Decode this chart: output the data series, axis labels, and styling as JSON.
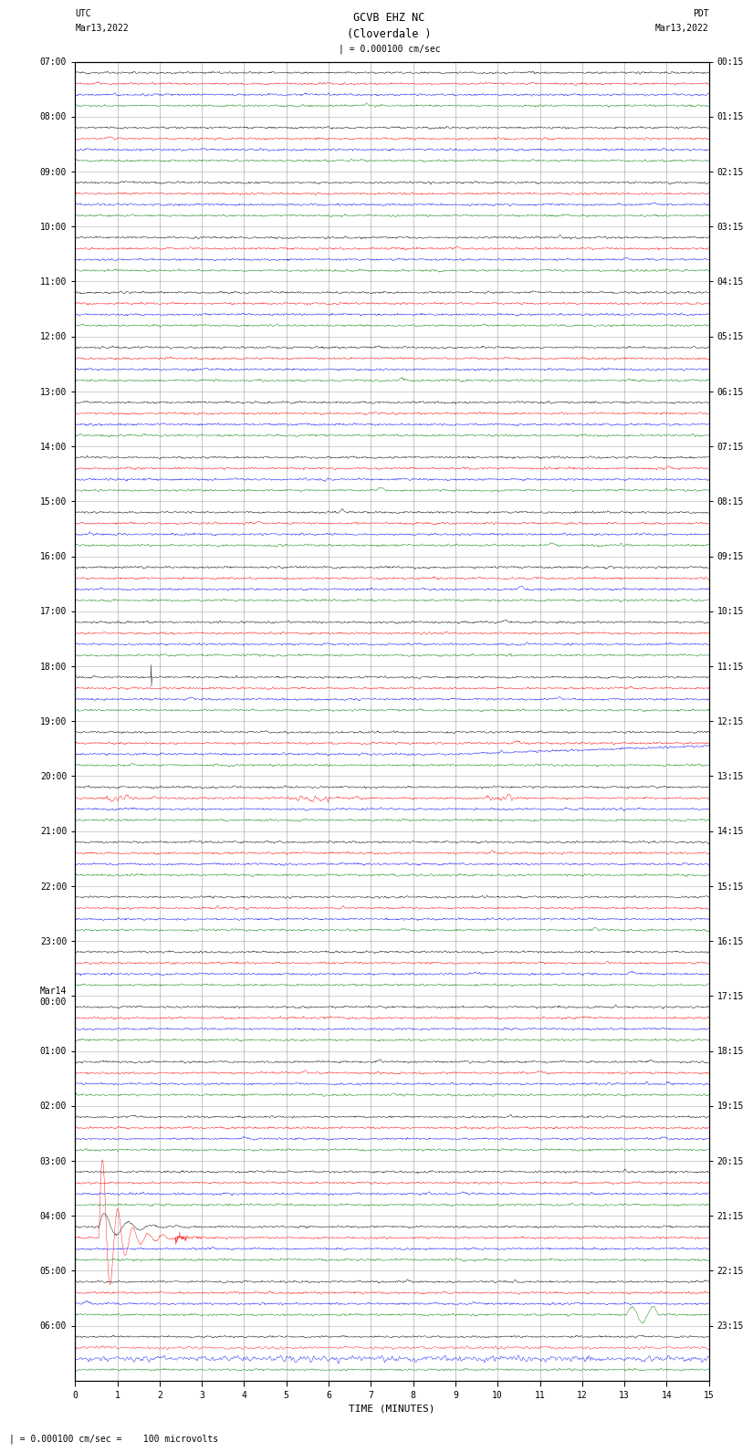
{
  "title_line1": "GCVB EHZ NC",
  "title_line2": "(Cloverdale )",
  "scale_label": "| = 0.000100 cm/sec",
  "bottom_label": "| = 0.000100 cm/sec =    100 microvolts",
  "utc_label": "UTC",
  "utc_date": "Mar13,2022",
  "pdt_label": "PDT",
  "pdt_date": "Mar13,2022",
  "xlabel": "TIME (MINUTES)",
  "left_times": [
    "07:00",
    "08:00",
    "09:00",
    "10:00",
    "11:00",
    "12:00",
    "13:00",
    "14:00",
    "15:00",
    "16:00",
    "17:00",
    "18:00",
    "19:00",
    "20:00",
    "21:00",
    "22:00",
    "23:00",
    "Mar14\n00:00",
    "01:00",
    "02:00",
    "03:00",
    "04:00",
    "05:00",
    "06:00"
  ],
  "right_times": [
    "00:15",
    "01:15",
    "02:15",
    "03:15",
    "04:15",
    "05:15",
    "06:15",
    "07:15",
    "08:15",
    "09:15",
    "10:15",
    "11:15",
    "12:15",
    "13:15",
    "14:15",
    "15:15",
    "16:15",
    "17:15",
    "18:15",
    "19:15",
    "20:15",
    "21:15",
    "22:15",
    "23:15"
  ],
  "n_rows": 24,
  "traces_per_row": 4,
  "trace_colors": [
    "black",
    "red",
    "blue",
    "green"
  ],
  "xmin": 0,
  "xmax": 15,
  "noise_amp": 0.018,
  "bg_color": "white",
  "grid_color": "#777777",
  "title_fontsize": 8.5,
  "tick_fontsize": 7,
  "label_fontsize": 8
}
